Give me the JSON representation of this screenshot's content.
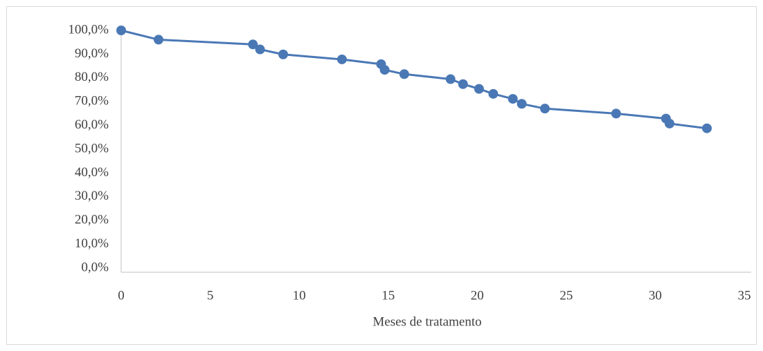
{
  "chart_data": {
    "type": "line",
    "x_label": "Meses de tratamento",
    "x": [
      0,
      2.1,
      7.4,
      7.8,
      9.1,
      12.4,
      14.6,
      14.8,
      15.9,
      18.5,
      19.2,
      20.1,
      20.9,
      22.0,
      22.5,
      23.8,
      27.8,
      30.6,
      30.8,
      32.9
    ],
    "series": [
      {
        "color": "#4a78b5",
        "values": [
          100,
          96.1,
          94.1,
          92.0,
          89.9,
          87.8,
          85.8,
          83.4,
          81.6,
          79.5,
          77.4,
          75.4,
          73.3,
          71.2,
          69.1,
          67.1,
          65.0,
          62.9,
          60.8,
          58.8
        ]
      }
    ],
    "xlim": [
      0,
      35
    ],
    "xticks": [
      0,
      5,
      10,
      15,
      20,
      25,
      30,
      35
    ],
    "ylim": [
      0,
      100
    ],
    "yticks": [
      {
        "value": 0,
        "label": "0,0%"
      },
      {
        "value": 10,
        "label": "10,0%"
      },
      {
        "value": 20,
        "label": "20,0%"
      },
      {
        "value": 30,
        "label": "30,0%"
      },
      {
        "value": 40,
        "label": "40,0%"
      },
      {
        "value": 50,
        "label": "50,0%"
      },
      {
        "value": 60,
        "label": "60,0%"
      },
      {
        "value": 70,
        "label": "70,0%"
      },
      {
        "value": 80,
        "label": "80,0%"
      },
      {
        "value": 90,
        "label": "90,0%"
      },
      {
        "value": 100,
        "label": "100,0%"
      }
    ],
    "grid": false
  }
}
